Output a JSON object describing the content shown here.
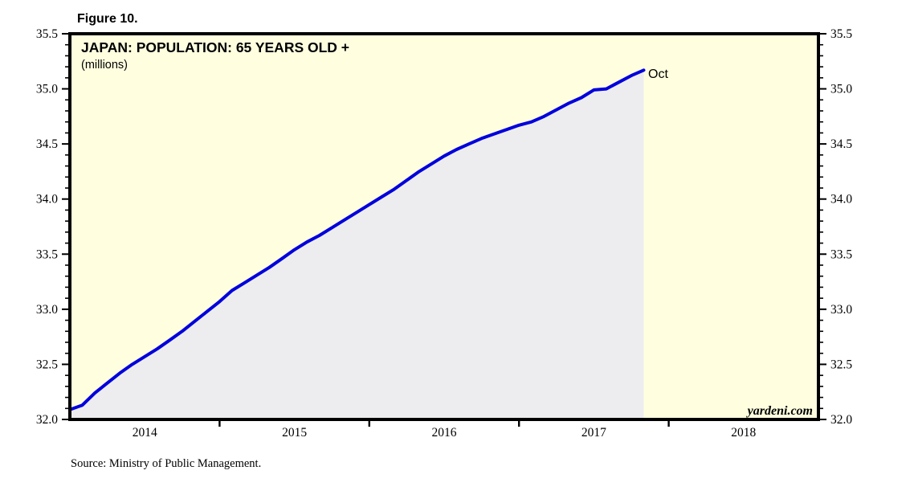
{
  "figure_label": "Figure 10.",
  "chart": {
    "title": "JAPAN: POPULATION: 65 YEARS OLD +",
    "subtitle": "(millions)",
    "annotation": {
      "text": "Oct"
    },
    "watermark": "yardeni.com"
  },
  "source": "Source: Ministry of Public Management.",
  "chart_data": {
    "type": "area",
    "title": "JAPAN: POPULATION: 65 YEARS OLD +",
    "ylabel": "millions",
    "series_name": "Japan population 65 years old and over",
    "frequency": "monthly",
    "start_month": "2013-12",
    "end_month": "2017-10",
    "last_point_label": "Oct",
    "values": [
      32.09,
      32.13,
      32.24,
      32.33,
      32.42,
      32.5,
      32.57,
      32.64,
      32.72,
      32.8,
      32.89,
      32.98,
      33.07,
      33.17,
      33.24,
      33.31,
      33.38,
      33.46,
      33.54,
      33.61,
      33.67,
      33.74,
      33.81,
      33.88,
      33.95,
      34.02,
      34.09,
      34.17,
      34.25,
      34.32,
      34.39,
      34.45,
      34.5,
      34.55,
      34.59,
      34.63,
      34.67,
      34.7,
      34.75,
      34.81,
      34.87,
      34.92,
      34.99,
      35.0,
      35.06,
      35.12,
      35.17
    ],
    "x_tick_labels": [
      "2014",
      "2015",
      "2016",
      "2017",
      "2018"
    ],
    "x_range_years": [
      2014,
      2019
    ],
    "ylim": [
      32.0,
      35.5
    ],
    "y_ticks_major": [
      32.0,
      32.5,
      33.0,
      33.5,
      34.0,
      34.5,
      35.0,
      35.5
    ],
    "y_minor_step": 0.1,
    "grid": "off",
    "legend": "none",
    "colors": {
      "line": "#0000DD",
      "area_fill": "#EDEDF0",
      "plot_bg": "#FFFFE0",
      "axis": "#000000",
      "annotation": "#0000DD"
    }
  }
}
